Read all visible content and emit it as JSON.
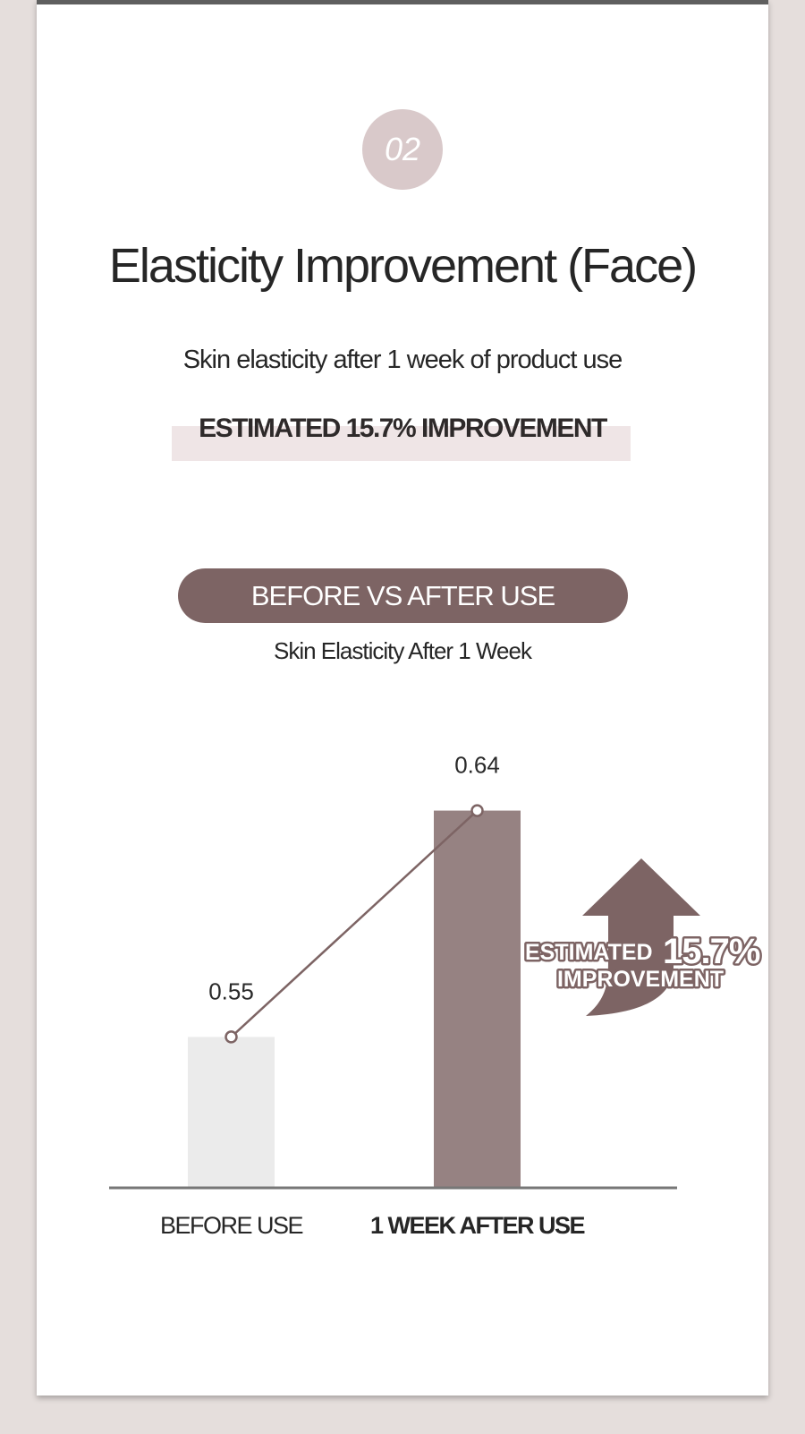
{
  "section_number": "02",
  "title": "Elasticity Improvement (Face)",
  "subtitle": "Skin elasticity after 1 week of product use",
  "highlight": "ESTIMATED 15.7% IMPROVEMENT",
  "pill_label": "BEFORE VS AFTER USE",
  "chart_caption": "Skin Elasticity After 1 Week",
  "colors": {
    "background": "#e5dedc",
    "top_bar": "#5f5f5f",
    "badge": "#d9c9ca",
    "accent": "#7d6464",
    "before_bar": "#ebebeb",
    "after_bar": "#968282",
    "highlight_box": "#efe5e6",
    "axis": "#777777"
  },
  "chart_data": {
    "type": "bar",
    "categories": [
      "BEFORE USE",
      "1 WEEK AFTER USE"
    ],
    "values": [
      0.55,
      0.64
    ],
    "value_labels": [
      "0.55",
      "0.64"
    ],
    "overlay_line": true,
    "ylim": [
      0.49,
      0.7
    ],
    "grid": false,
    "title": "Skin Elasticity After 1 Week",
    "xlabel": "",
    "ylabel": "",
    "annotation": {
      "icon": "up-arrow-icon",
      "line1_prefix": "ESTIMATED",
      "line1_value": "15.7%",
      "line2": "IMPROVEMENT"
    }
  }
}
